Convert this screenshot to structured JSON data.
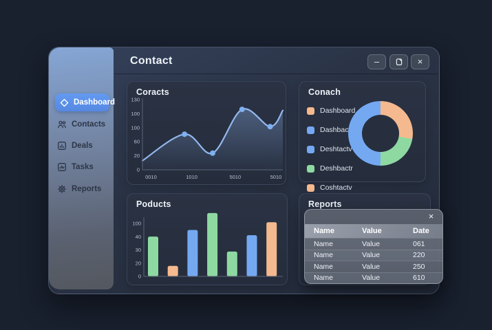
{
  "window": {
    "title": "Contact",
    "icons": {
      "minimize": "–",
      "maximize": "restore-icon",
      "close": "×"
    }
  },
  "sidebar": {
    "items": [
      {
        "label": "Dashboard",
        "icon": "diamond-icon",
        "active": true
      },
      {
        "label": "Contacts",
        "icon": "users-icon",
        "active": false
      },
      {
        "label": "Deals",
        "icon": "chart-box-icon",
        "active": false
      },
      {
        "label": "Tasks",
        "icon": "pulse-box-icon",
        "active": false
      },
      {
        "label": "Reports",
        "icon": "gear-icon",
        "active": false
      }
    ]
  },
  "panels": {
    "reports_title": "Reports"
  },
  "reports_popup": {
    "close_icon": "×",
    "columns": [
      "Name",
      "Value",
      "Date"
    ],
    "rows": [
      [
        "Name",
        "Value",
        "061"
      ],
      [
        "Name",
        "Value",
        "220"
      ],
      [
        "Name",
        "Value",
        "250"
      ],
      [
        "Name",
        "Value",
        "610"
      ]
    ]
  },
  "colors": {
    "accent": "#5a8fe8",
    "green": "#8ed9a1",
    "orange": "#f4b98e",
    "blue": "#74a9f2",
    "line": "#93b9ee",
    "dot": "#7fb0f0",
    "axis": "#5a6478"
  },
  "chart_data": [
    {
      "type": "line",
      "title": "Coracts",
      "ylim": [
        0,
        130
      ],
      "y_ticks": [
        "130",
        "100",
        "100",
        "60",
        "20",
        "0"
      ],
      "x_ticks": [
        "0010",
        "1010",
        "5010",
        "5010"
      ],
      "x_tick_pos_pct": [
        2,
        31,
        62,
        91
      ],
      "points_x_pct": [
        0,
        30,
        50,
        71,
        91,
        100
      ],
      "points_y": [
        17,
        66,
        31,
        112,
        80,
        110
      ],
      "dot_indices": [
        1,
        2,
        3,
        4
      ],
      "grid": false,
      "legend": "none"
    },
    {
      "type": "bar",
      "title": "Poducts",
      "y_ticks": [
        "100",
        "40",
        "30",
        "20",
        "0"
      ],
      "values_pct": [
        61,
        16,
        71,
        97,
        38,
        63,
        83
      ],
      "bar_colors": [
        "green",
        "orange",
        "blue",
        "green",
        "green",
        "blue",
        "orange"
      ],
      "grid": false,
      "legend": "none"
    },
    {
      "type": "donut",
      "title": "Conach",
      "segments": [
        {
          "label": "orange",
          "color": "orange",
          "pct": 27.8
        },
        {
          "label": "green",
          "color": "green",
          "pct": 22.2
        },
        {
          "label": "blue",
          "color": "blue",
          "pct": 50.0
        }
      ],
      "legend_position": "left",
      "legend": [
        {
          "label": "Dashboard",
          "color": "orange"
        },
        {
          "label": "Dashbactr",
          "color": "blue"
        },
        {
          "label": "Deshtactv",
          "color": "blue"
        },
        {
          "label": "Deshbactr",
          "color": "green"
        },
        {
          "label": "Coshtactv",
          "color": "orange"
        }
      ]
    }
  ]
}
